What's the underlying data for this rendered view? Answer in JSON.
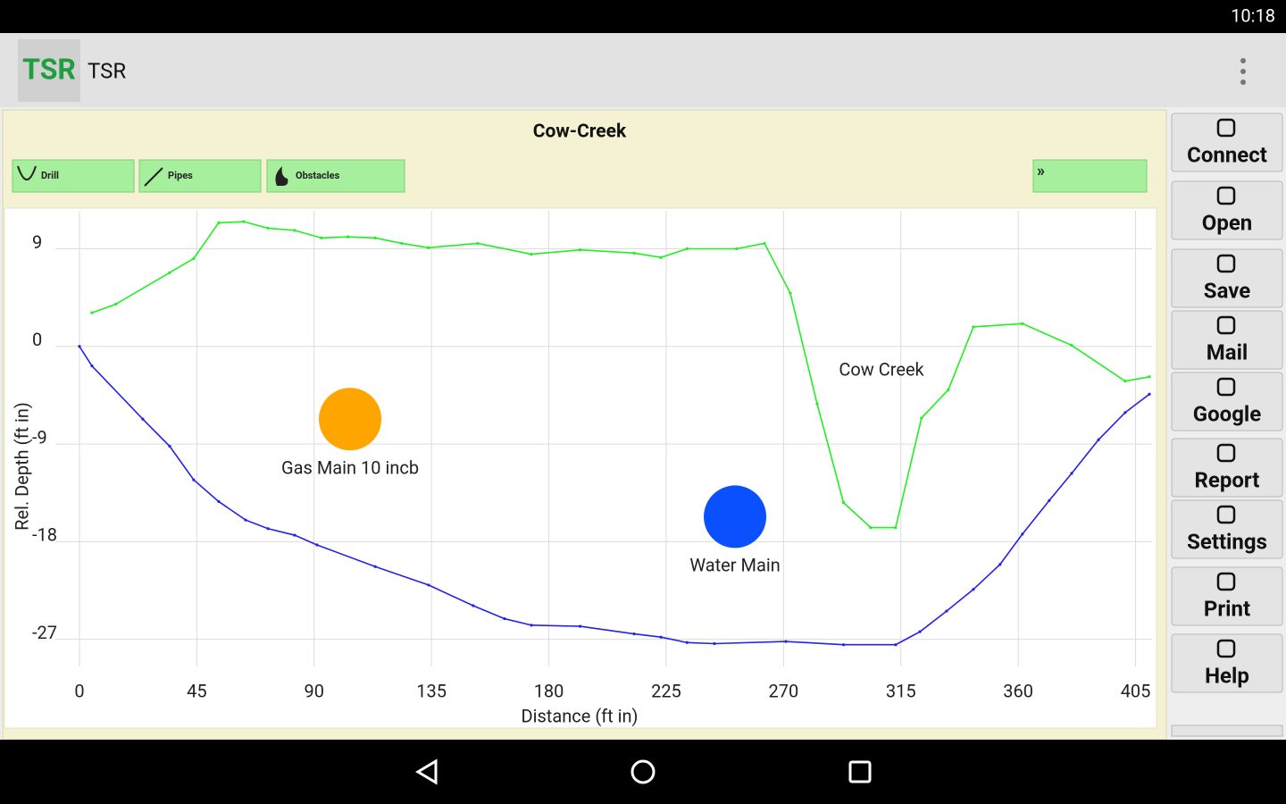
{
  "status_bar": {
    "time": "10:18"
  },
  "app_bar": {
    "logo": "TSR",
    "title": "TSR"
  },
  "project": {
    "title": "Cow-Creek"
  },
  "toolbar": {
    "buttons": [
      "Drill",
      "Pipes",
      "Obstacles",
      "»"
    ]
  },
  "sidebar": {
    "buttons": [
      "Connect",
      "Open",
      "Save",
      "Mail",
      "Google",
      "Report",
      "Settings",
      "Print",
      "Help"
    ]
  },
  "chart_data": {
    "type": "line",
    "xlabel": "Distance (ft in)",
    "ylabel": "Rel. Depth (ft in)",
    "xlim": [
      -8,
      412
    ],
    "ylim": [
      -29.5,
      12.5
    ],
    "xticks": [
      0,
      45,
      90,
      135,
      180,
      225,
      270,
      315,
      360,
      405
    ],
    "yticks": [
      9,
      0,
      -9,
      -18,
      -27
    ],
    "grid": true,
    "series": [
      {
        "name": "Cow Creek",
        "color": "#22ee22",
        "x": [
          4.8,
          14,
          34.6,
          43.8,
          53.4,
          63,
          72.3,
          82.5,
          92.8,
          103,
          113.4,
          123.6,
          133.9,
          152.7,
          173.3,
          192,
          212.7,
          223,
          233,
          252,
          262.7,
          272.6,
          282.9,
          293,
          303.4,
          313,
          322.9,
          333.2,
          342.8,
          361.6,
          380.5,
          401,
          410.3
        ],
        "values": [
          3.1,
          3.9,
          6.8,
          8.1,
          11.4,
          11.5,
          10.9,
          10.7,
          10.0,
          10.1,
          10.0,
          9.5,
          9.1,
          9.5,
          8.5,
          8.9,
          8.6,
          8.2,
          9.0,
          9.0,
          9.5,
          4.9,
          -5.3,
          -14.4,
          -16.7,
          -16.7,
          -6.6,
          -4.0,
          1.8,
          2.1,
          0.1,
          -3.2,
          -2.8
        ]
      },
      {
        "color": "#2222ee",
        "x": [
          0,
          4.8,
          24.3,
          34.6,
          43.8,
          53.4,
          63.7,
          72.3,
          82.5,
          91.1,
          113.4,
          133.9,
          151,
          163,
          173.3,
          192,
          212.7,
          223,
          233,
          243.5,
          270.9,
          293,
          313,
          322.3,
          332.5,
          342.8,
          353,
          361.6,
          371.9,
          380.5,
          390.8,
          401,
          410.3
        ],
        "values": [
          0,
          -1.8,
          -6.7,
          -9.2,
          -12.3,
          -14.3,
          -16.0,
          -16.8,
          -17.4,
          -18.3,
          -20.3,
          -22.0,
          -23.9,
          -25.1,
          -25.7,
          -25.8,
          -26.5,
          -26.8,
          -27.3,
          -27.4,
          -27.2,
          -27.5,
          -27.5,
          -26.3,
          -24.4,
          -22.4,
          -20.1,
          -17.3,
          -14.2,
          -11.7,
          -8.6,
          -6.1,
          -4.4
        ]
      }
    ],
    "points": [
      {
        "label": "Gas Main 10 incb",
        "x": 103.8,
        "y": -6.7,
        "color": "#ffa500"
      },
      {
        "label": "Water Main",
        "x": 251.4,
        "y": -15.7,
        "color": "#0a50ff"
      }
    ]
  }
}
